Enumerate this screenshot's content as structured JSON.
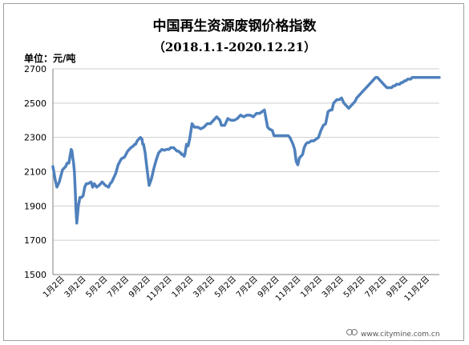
{
  "chart_data": {
    "type": "line",
    "title": "中国再生资源废钢价格指数",
    "subtitle": "（2018.1.1-2020.12.21）",
    "unit_label": "单位：元/吨",
    "ylim": [
      1500,
      2700
    ],
    "y_ticks": [
      1500,
      1700,
      1900,
      2100,
      2300,
      2500,
      2700
    ],
    "grid": true,
    "legend": "none",
    "line_color": "#4f81bd",
    "x_tick_labels": [
      "1月2日",
      "3月2日",
      "5月2日",
      "7月2日",
      "9月2日",
      "11月2日",
      "1月2日",
      "3月2日",
      "5月2日",
      "7月2日",
      "9月2日",
      "11月2日",
      "1月2日",
      "3月2日",
      "5月2日",
      "7月2日",
      "9月2日",
      "11月2日"
    ],
    "series": [
      {
        "x": [
          0,
          3,
          5,
          8,
          12,
          16,
          18,
          20,
          23,
          24,
          25,
          26,
          27,
          28,
          29,
          30,
          32,
          34,
          36,
          38,
          40,
          42,
          44,
          46,
          48,
          50,
          52,
          55,
          58,
          62,
          66,
          70,
          72,
          74,
          76,
          79,
          82,
          86,
          90,
          94,
          98,
          101,
          103,
          104,
          105,
          106,
          108,
          110,
          112,
          113,
          114,
          116,
          118,
          121,
          124,
          127,
          130,
          133,
          137,
          140,
          143,
          146,
          148,
          149,
          150,
          152,
          154,
          156,
          158,
          160,
          161,
          162,
          163,
          164,
          165,
          166,
          168,
          170,
          172,
          175,
          178,
          182,
          186,
          190,
          194,
          198,
          202,
          206,
          210,
          212,
          214,
          216,
          220,
          224,
          228,
          232,
          236,
          240,
          244,
          248,
          252,
          256,
          260,
          263,
          266,
          270,
          272,
          274,
          276,
          278,
          280,
          281,
          282,
          284,
          288,
          292,
          296,
          298,
          300,
          302,
          304,
          306,
          308,
          310,
          312,
          314,
          316,
          318,
          320,
          322,
          325,
          328,
          331,
          334,
          337,
          340,
          343,
          346,
          349,
          351,
          353,
          355,
          357,
          360,
          363,
          366,
          368,
          370,
          372,
          374,
          376,
          378,
          380,
          382,
          384,
          386,
          388,
          390,
          392,
          394,
          396,
          398,
          400,
          402,
          404,
          406,
          408,
          410,
          412,
          414,
          416,
          418,
          420,
          422,
          424,
          426,
          428,
          430,
          432,
          434,
          436,
          438,
          440,
          442,
          444,
          446,
          448,
          450,
          452,
          454,
          456,
          458,
          460,
          462,
          464,
          466,
          468,
          470,
          472,
          474,
          476,
          478,
          480,
          482,
          484,
          486
        ],
        "values": [
          2130,
          2050,
          2010,
          2040,
          2110,
          2130,
          2150,
          2150,
          2230,
          2220,
          2180,
          2150,
          2100,
          2000,
          1880,
          1800,
          1900,
          1950,
          1950,
          1960,
          2010,
          2030,
          2030,
          2035,
          2040,
          2010,
          2030,
          2010,
          2020,
          2040,
          2020,
          2010,
          2030,
          2040,
          2060,
          2090,
          2140,
          2175,
          2185,
          2220,
          2240,
          2250,
          2260,
          2260,
          2270,
          2280,
          2290,
          2300,
          2290,
          2260,
          2260,
          2210,
          2130,
          2020,
          2060,
          2120,
          2170,
          2210,
          2230,
          2225,
          2230,
          2230,
          2240,
          2240,
          2240,
          2240,
          2230,
          2220,
          2220,
          2210,
          2210,
          2200,
          2200,
          2200,
          2190,
          2200,
          2260,
          2250,
          2290,
          2380,
          2360,
          2360,
          2350,
          2360,
          2380,
          2380,
          2400,
          2420,
          2400,
          2370,
          2370,
          2370,
          2410,
          2400,
          2400,
          2410,
          2430,
          2420,
          2430,
          2430,
          2420,
          2440,
          2440,
          2450,
          2460,
          2360,
          2350,
          2345,
          2340,
          2310,
          2310,
          2310,
          2310,
          2310,
          2310,
          2310,
          2310,
          2300,
          2280,
          2260,
          2230,
          2160,
          2140,
          2180,
          2190,
          2200,
          2240,
          2260,
          2270,
          2270,
          2280,
          2280,
          2290,
          2300,
          2340,
          2370,
          2380,
          2450,
          2460,
          2460,
          2500,
          2510,
          2520,
          2520,
          2530,
          2500,
          2490,
          2480,
          2470,
          2480,
          2490,
          2500,
          2510,
          2530,
          2540,
          2550,
          2560,
          2570,
          2580,
          2590,
          2600,
          2610,
          2620,
          2630,
          2640,
          2650,
          2650,
          2640,
          2630,
          2620,
          2610,
          2600,
          2590,
          2590,
          2590,
          2590,
          2600,
          2600,
          2610,
          2610,
          2610,
          2620,
          2620,
          2630,
          2630,
          2640,
          2640,
          2640,
          2650,
          2650,
          2650,
          2650,
          2650,
          2650,
          2650,
          2650,
          2650,
          2650,
          2650,
          2650,
          2650,
          2650,
          2650,
          2650,
          2650,
          2650
        ]
      }
    ]
  },
  "watermark": {
    "text": "www.citymine.com.cn"
  }
}
